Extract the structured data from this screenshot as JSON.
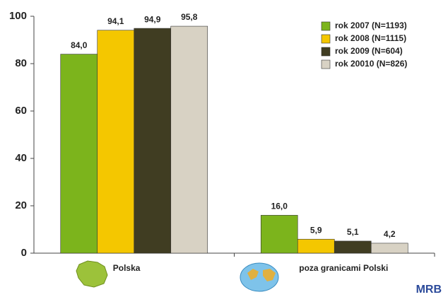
{
  "chart_data": {
    "type": "bar",
    "categories": [
      "Polska",
      "poza granicami Polski"
    ],
    "series": [
      {
        "name": "rok 2007 (N=1193)",
        "color": "#7cb41c",
        "values": [
          84.0,
          16.0
        ],
        "value_labels": [
          "84,0",
          "16,0"
        ]
      },
      {
        "name": "rok 2008 (N=1115)",
        "color": "#f4c700",
        "values": [
          94.1,
          5.9
        ],
        "value_labels": [
          "94,1",
          "5,9"
        ]
      },
      {
        "name": "rok 2009 (N=604)",
        "color": "#403d22",
        "values": [
          94.9,
          5.1
        ],
        "value_labels": [
          "94,9",
          "5,1"
        ]
      },
      {
        "name": "rok 20010 (N=826)",
        "color": "#d8d2c4",
        "values": [
          95.8,
          4.2
        ],
        "value_labels": [
          "95,8",
          "4,2"
        ]
      }
    ],
    "ylim": [
      0,
      100
    ],
    "yticks": [
      0,
      20,
      40,
      60,
      80,
      100
    ],
    "legend": "top-right",
    "logo": "MRB"
  }
}
